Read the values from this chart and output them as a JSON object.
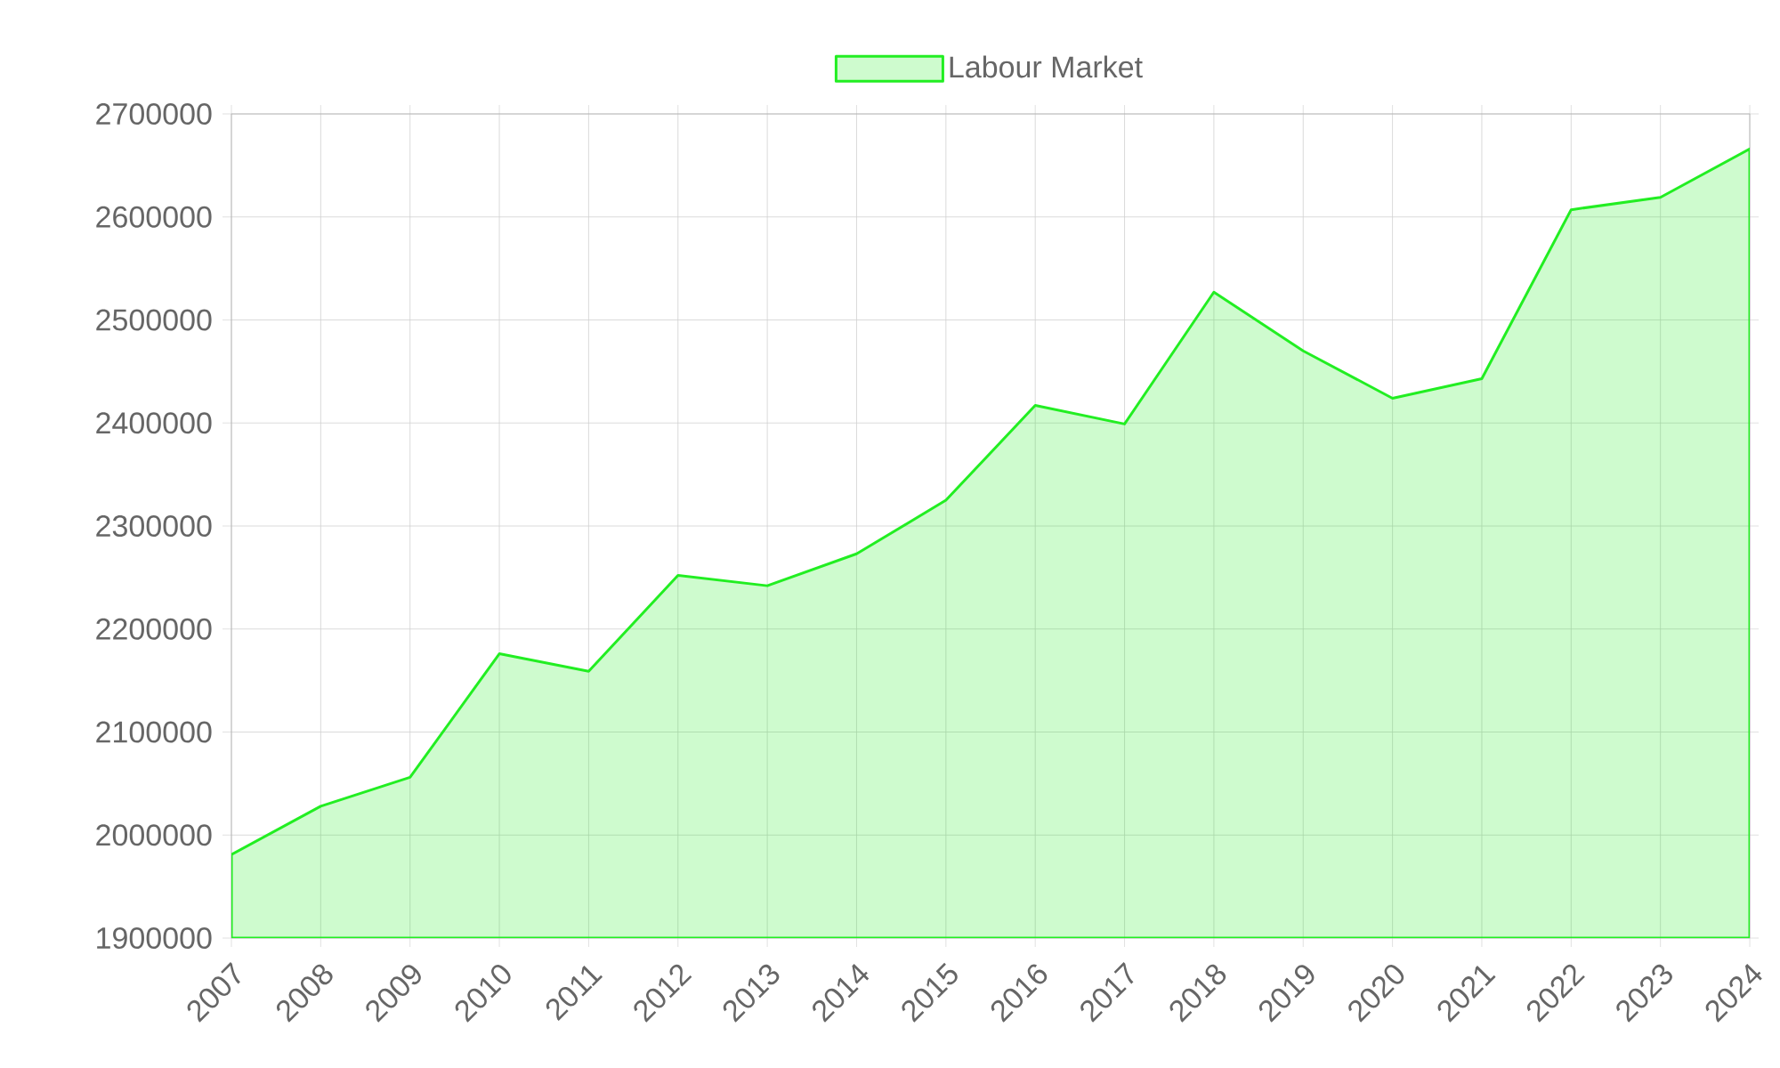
{
  "chart_data": {
    "type": "area",
    "categories": [
      "2007",
      "2008",
      "2009",
      "2010",
      "2011",
      "2012",
      "2013",
      "2014",
      "2015",
      "2016",
      "2017",
      "2018",
      "2019",
      "2020",
      "2021",
      "2022",
      "2023",
      "2024"
    ],
    "series": [
      {
        "name": "Labour Market",
        "color": "#22ee22",
        "values": [
          1981000,
          2028000,
          2056000,
          2176000,
          2159000,
          2252000,
          2242000,
          2273000,
          2325000,
          2417000,
          2399000,
          2527000,
          2470000,
          2424000,
          2443000,
          2607000,
          2619000,
          2666000
        ]
      }
    ],
    "ylim": [
      1900000,
      2700000
    ],
    "yticks": [
      1900000,
      2000000,
      2100000,
      2200000,
      2300000,
      2400000,
      2500000,
      2600000,
      2700000
    ],
    "grid": true,
    "legend": "top"
  }
}
